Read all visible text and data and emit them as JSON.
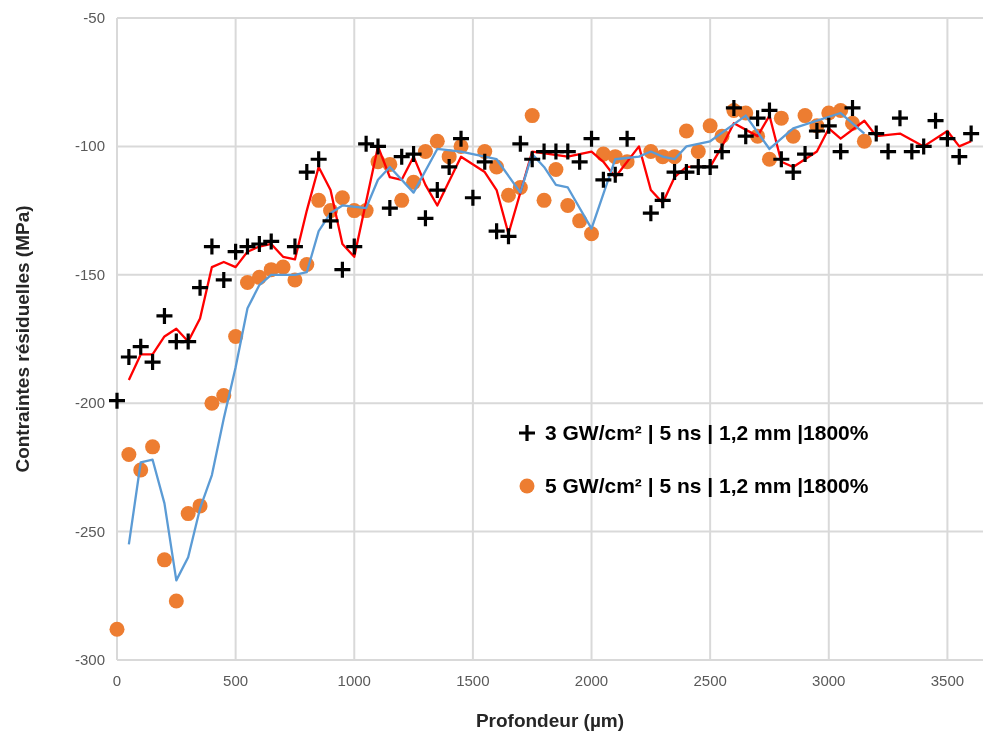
{
  "chart_data": {
    "type": "scatter",
    "xlabel": "Profondeur (µm)",
    "ylabel": "Contraintes résiduelles (MPa)",
    "xlim": [
      0,
      3650
    ],
    "ylim": [
      -300,
      -50
    ],
    "xticks": [
      0,
      500,
      1000,
      1500,
      2000,
      2500,
      3000,
      3500
    ],
    "yticks": [
      -300,
      -250,
      -200,
      -150,
      -100,
      -50
    ],
    "grid": true,
    "legend": "right",
    "series": [
      {
        "name": "3 GW/cm² | 5 ns | 1,2 mm |1800%",
        "marker": "cross",
        "color": "#000000",
        "x": [
          0,
          50,
          100,
          150,
          200,
          250,
          300,
          350,
          400,
          450,
          500,
          550,
          600,
          650,
          750,
          800,
          850,
          900,
          950,
          1000,
          1050,
          1100,
          1150,
          1200,
          1250,
          1300,
          1350,
          1400,
          1450,
          1500,
          1550,
          1600,
          1650,
          1700,
          1750,
          1800,
          1850,
          1900,
          1950,
          2000,
          2050,
          2100,
          2150,
          2250,
          2300,
          2350,
          2400,
          2450,
          2500,
          2550,
          2600,
          2650,
          2700,
          2750,
          2800,
          2850,
          2900,
          2950,
          3000,
          3050,
          3100,
          3200,
          3250,
          3300,
          3350,
          3400,
          3450,
          3500,
          3550,
          3600
        ],
        "values": [
          -199,
          -182,
          -178,
          -184,
          -166,
          -176,
          -176,
          -155,
          -139,
          -152,
          -141,
          -139,
          -138,
          -137,
          -139,
          -110,
          -105,
          -129,
          -148,
          -139,
          -99,
          -100,
          -124,
          -104,
          -103,
          -128,
          -117,
          -108,
          -97,
          -120,
          -106,
          -133,
          -135,
          -99,
          -105,
          -102,
          -102,
          -102,
          -106,
          -97,
          -113,
          -111,
          -97,
          -126,
          -121,
          -110,
          -110,
          -108,
          -108,
          -102,
          -85,
          -96,
          -89,
          -86,
          -105,
          -110,
          -103,
          -94,
          -92,
          -102,
          -85,
          -95,
          -102,
          -89,
          -102,
          -100,
          -90,
          -97,
          -104,
          -95
        ]
      },
      {
        "name": "5 GW/cm² | 5 ns | 1,2 mm |1800%",
        "marker": "circle",
        "color": "#ed7d31",
        "x": [
          0,
          50,
          100,
          150,
          200,
          250,
          300,
          350,
          400,
          450,
          500,
          550,
          600,
          650,
          700,
          750,
          800,
          850,
          900,
          950,
          1000,
          1050,
          1100,
          1150,
          1200,
          1250,
          1300,
          1350,
          1400,
          1450,
          1550,
          1600,
          1650,
          1700,
          1750,
          1800,
          1850,
          1900,
          1950,
          2000,
          2050,
          2100,
          2150,
          2250,
          2300,
          2350,
          2400,
          2450,
          2500,
          2550,
          2600,
          2650,
          2700,
          2750,
          2800,
          2850,
          2900,
          2950,
          3000,
          3050,
          3100,
          3150
        ],
        "values": [
          -288,
          -220,
          -226,
          -217,
          -261,
          -277,
          -243,
          -240,
          -200,
          -197,
          -174,
          -153,
          -151,
          -148,
          -147,
          -152,
          -146,
          -121,
          -125,
          -120,
          -125,
          -125,
          -106,
          -107,
          -121,
          -114,
          -102,
          -98,
          -104,
          -100,
          -102,
          -108,
          -119,
          -116,
          -88,
          -121,
          -109,
          -123,
          -129,
          -134,
          -103,
          -104,
          -106,
          -102,
          -104,
          -104,
          -94,
          -102,
          -92,
          -96,
          -86,
          -87,
          -96,
          -105,
          -89,
          -96,
          -88,
          -92,
          -87,
          -86,
          -91,
          -98
        ]
      },
      {
        "type": "line",
        "marker": "none",
        "color": "#ff0000",
        "x": [
          50,
          100,
          150,
          200,
          250,
          300,
          350,
          400,
          450,
          500,
          550,
          600,
          650,
          700,
          750,
          800,
          850,
          900,
          950,
          1000,
          1100,
          1150,
          1200,
          1250,
          1300,
          1350,
          1450,
          1550,
          1600,
          1650,
          1750,
          1900,
          2000,
          2050,
          2100,
          2200,
          2250,
          2300,
          2350,
          2400,
          2500,
          2550,
          2600,
          2700,
          2750,
          2800,
          2850,
          2950,
          3000,
          3050,
          3150,
          3200,
          3300,
          3400,
          3500,
          3550,
          3600
        ],
        "values": [
          -191,
          -181,
          -181,
          -174,
          -171,
          -176,
          -167,
          -147,
          -145,
          -147,
          -141,
          -139,
          -138,
          -143,
          -144,
          -125,
          -108,
          -117,
          -138,
          -143,
          -100,
          -112,
          -113,
          -104,
          -115,
          -123,
          -104,
          -110,
          -117,
          -134,
          -102,
          -104,
          -102,
          -106,
          -112,
          -100,
          -117,
          -122,
          -112,
          -108,
          -108,
          -100,
          -91,
          -96,
          -88,
          -106,
          -108,
          -102,
          -93,
          -97,
          -90,
          -96,
          -95,
          -100,
          -94,
          -100,
          -98
        ]
      },
      {
        "type": "line",
        "marker": "none",
        "color": "#5b9bd5",
        "x": [
          50,
          100,
          150,
          200,
          250,
          300,
          350,
          400,
          450,
          500,
          550,
          600,
          650,
          700,
          750,
          800,
          850,
          900,
          950,
          1050,
          1100,
          1150,
          1250,
          1350,
          1450,
          1600,
          1700,
          1750,
          1800,
          1850,
          1900,
          2000,
          2100,
          2200,
          2250,
          2300,
          2350,
          2400,
          2500,
          2650,
          2750,
          2850,
          3050,
          3150
        ],
        "values": [
          -255,
          -223,
          -222,
          -239,
          -269,
          -260,
          -241,
          -228,
          -206,
          -186,
          -163,
          -154,
          -150,
          -150,
          -150,
          -149,
          -133,
          -126,
          -123,
          -124,
          -113,
          -108,
          -118,
          -101,
          -102,
          -105,
          -118,
          -103,
          -108,
          -115,
          -116,
          -132,
          -105,
          -104,
          -102,
          -104,
          -105,
          -100,
          -98,
          -88,
          -101,
          -93,
          -87,
          -95
        ]
      }
    ]
  }
}
